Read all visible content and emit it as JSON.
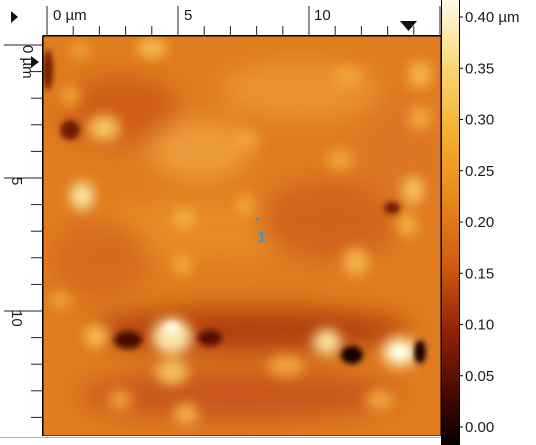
{
  "viewer": {
    "x_axis": {
      "unit_label": "0 µm",
      "ticks": [
        "5",
        "10"
      ]
    },
    "y_axis": {
      "unit_label": "0 µm",
      "ticks": [
        "5",
        "10"
      ]
    },
    "marker": {
      "label": "1",
      "color": "#2a9fd6"
    },
    "scale": {
      "labels": [
        "0.40 µm",
        "0.35",
        "0.30",
        "0.25",
        "0.20",
        "0.15",
        "0.10",
        "0.05",
        "0.00"
      ],
      "max": 0.4,
      "min": 0.0
    },
    "icons": {
      "x_start": "play-right-icon",
      "x_end": "triangle-down-icon",
      "y_start": "play-right-icon"
    },
    "colors": {
      "high": "#fff6d8",
      "upper": "#f6b12e",
      "mid": "#e37d1c",
      "low": "#8a1d07",
      "bottom": "#0d0000"
    }
  }
}
